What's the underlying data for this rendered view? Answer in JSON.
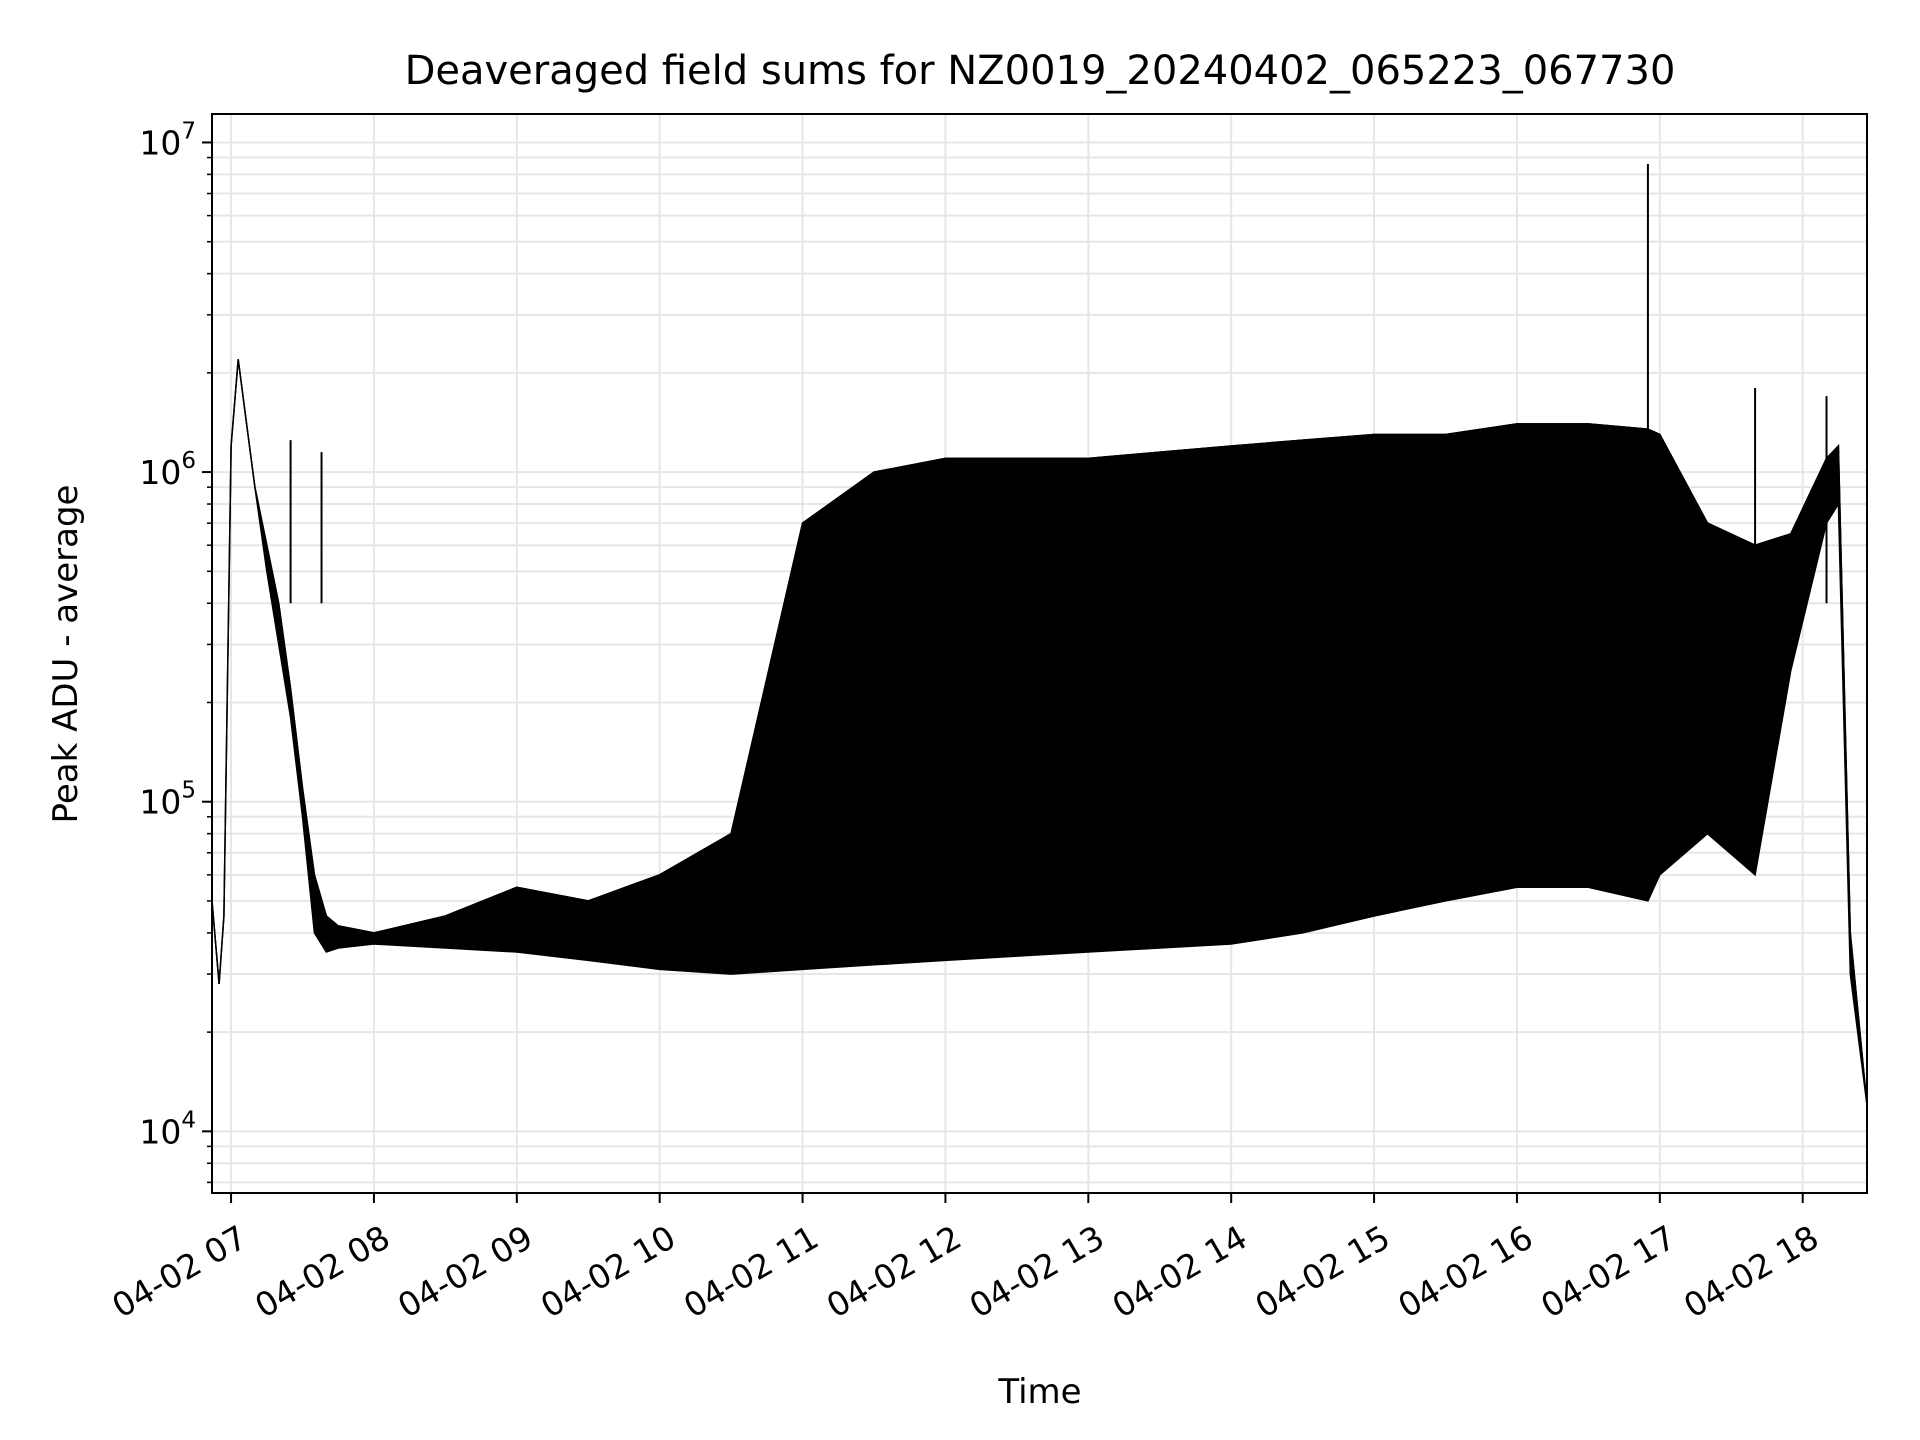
{
  "chart_data": {
    "type": "line",
    "title": "Deaveraged field sums for NZ0019_20240402_065223_067730",
    "xlabel": "Time",
    "ylabel": "Peak ADU - average",
    "yscale": "log",
    "xlim": [
      "2024-04-02 06:52",
      "2024-04-02 18:27"
    ],
    "ylim": [
      6500,
      12200000
    ],
    "grid": true,
    "grid_minor": true,
    "line_color": "#000000",
    "grid_color": "#e6e6e6",
    "x_ticks": [
      {
        "value": "2024-04-02 07:00",
        "label": "04-02 07"
      },
      {
        "value": "2024-04-02 08:00",
        "label": "04-02 08"
      },
      {
        "value": "2024-04-02 09:00",
        "label": "04-02 09"
      },
      {
        "value": "2024-04-02 10:00",
        "label": "04-02 10"
      },
      {
        "value": "2024-04-02 11:00",
        "label": "04-02 11"
      },
      {
        "value": "2024-04-02 12:00",
        "label": "04-02 12"
      },
      {
        "value": "2024-04-02 13:00",
        "label": "04-02 13"
      },
      {
        "value": "2024-04-02 14:00",
        "label": "04-02 14"
      },
      {
        "value": "2024-04-02 15:00",
        "label": "04-02 15"
      },
      {
        "value": "2024-04-02 16:00",
        "label": "04-02 16"
      },
      {
        "value": "2024-04-02 17:00",
        "label": "04-02 17"
      },
      {
        "value": "2024-04-02 18:00",
        "label": "04-02 18"
      }
    ],
    "y_ticks": [
      {
        "value": 10000,
        "base": "10",
        "exp": "4"
      },
      {
        "value": 100000,
        "base": "10",
        "exp": "5"
      },
      {
        "value": 1000000,
        "base": "10",
        "exp": "6"
      },
      {
        "value": 10000000,
        "base": "10",
        "exp": "7"
      }
    ],
    "series": [
      {
        "x": [
          "2024-04-02 06:52",
          "2024-04-02 06:55",
          "2024-04-02 06:57",
          "2024-04-02 07:00",
          "2024-04-02 07:03",
          "2024-04-02 07:06",
          "2024-04-02 07:10",
          "2024-04-02 07:15",
          "2024-04-02 07:20",
          "2024-04-02 07:25",
          "2024-04-02 07:30",
          "2024-04-02 07:35",
          "2024-04-02 07:40",
          "2024-04-02 07:45",
          "2024-04-02 08:00",
          "2024-04-02 08:30",
          "2024-04-02 09:00",
          "2024-04-02 09:30",
          "2024-04-02 10:00",
          "2024-04-02 10:30",
          "2024-04-02 11:00",
          "2024-04-02 11:30",
          "2024-04-02 12:00",
          "2024-04-02 12:30",
          "2024-04-02 13:00",
          "2024-04-02 13:30",
          "2024-04-02 14:00",
          "2024-04-02 14:30",
          "2024-04-02 15:00",
          "2024-04-02 15:30",
          "2024-04-02 16:00",
          "2024-04-02 16:30",
          "2024-04-02 16:55",
          "2024-04-02 17:00",
          "2024-04-02 17:20",
          "2024-04-02 17:40",
          "2024-04-02 17:55",
          "2024-04-02 18:10",
          "2024-04-02 18:15",
          "2024-04-02 18:20",
          "2024-04-02 18:27"
        ],
        "upper": [
          50000,
          28000,
          45000,
          1200000,
          2200000,
          1500000,
          900000,
          600000,
          400000,
          220000,
          110000,
          60000,
          45000,
          42000,
          40000,
          45000,
          55000,
          50000,
          60000,
          80000,
          700000,
          1000000,
          1100000,
          1100000,
          1100000,
          1150000,
          1200000,
          1250000,
          1300000,
          1300000,
          1400000,
          1400000,
          1350000,
          1300000,
          700000,
          600000,
          650000,
          1100000,
          1200000,
          40000,
          12000
        ],
        "lower": [
          50000,
          28000,
          45000,
          1200000,
          2200000,
          1500000,
          900000,
          500000,
          300000,
          180000,
          90000,
          40000,
          35000,
          36000,
          37000,
          36000,
          35000,
          33000,
          31000,
          30000,
          31000,
          32000,
          33000,
          34000,
          35000,
          36000,
          37000,
          40000,
          45000,
          50000,
          55000,
          55000,
          50000,
          60000,
          80000,
          60000,
          250000,
          700000,
          800000,
          30000,
          12000
        ],
        "spikes": [
          {
            "x": "2024-04-02 16:55",
            "value": 8600000
          },
          {
            "x": "2024-04-02 07:25",
            "value": 1250000
          },
          {
            "x": "2024-04-02 07:38",
            "value": 1150000
          },
          {
            "x": "2024-04-02 17:40",
            "value": 1800000
          },
          {
            "x": "2024-04-02 18:10",
            "value": 1700000
          }
        ]
      }
    ]
  }
}
